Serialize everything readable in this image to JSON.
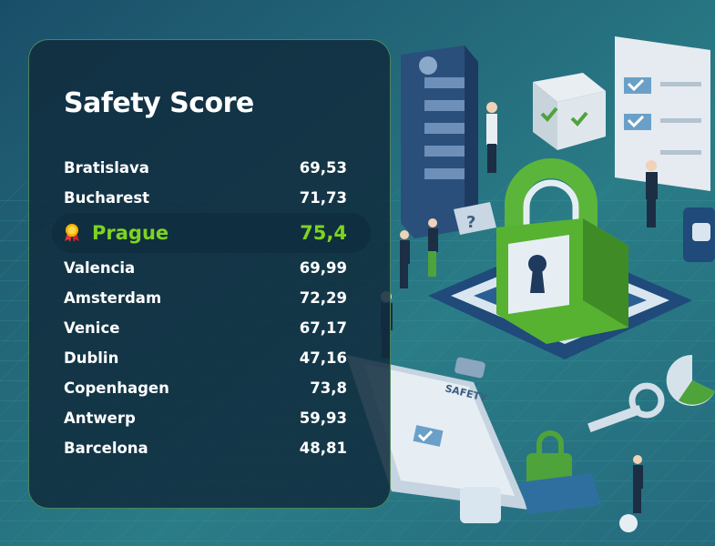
{
  "chart_data": {
    "type": "table",
    "title": "Safety Score",
    "rows": [
      {
        "city": "Bratislava",
        "value": "69,53"
      },
      {
        "city": "Bucharest",
        "value": "71,73"
      },
      {
        "city": "Prague",
        "value": "75,4",
        "highlight": true
      },
      {
        "city": "Valencia",
        "value": "69,99"
      },
      {
        "city": "Amsterdam",
        "value": "72,29"
      },
      {
        "city": "Venice",
        "value": "67,17"
      },
      {
        "city": "Dublin",
        "value": "47,16"
      },
      {
        "city": "Copenhagen",
        "value": "73,8"
      },
      {
        "city": "Antwerp",
        "value": "59,93"
      },
      {
        "city": "Barcelona",
        "value": "48,81"
      }
    ]
  },
  "illustration": {
    "sign_text": "SAFETY",
    "icon": "padlock-icon"
  },
  "colors": {
    "highlight_text": "#7ed321",
    "panel_border": "#78c86e",
    "background": "#1f5f78"
  }
}
